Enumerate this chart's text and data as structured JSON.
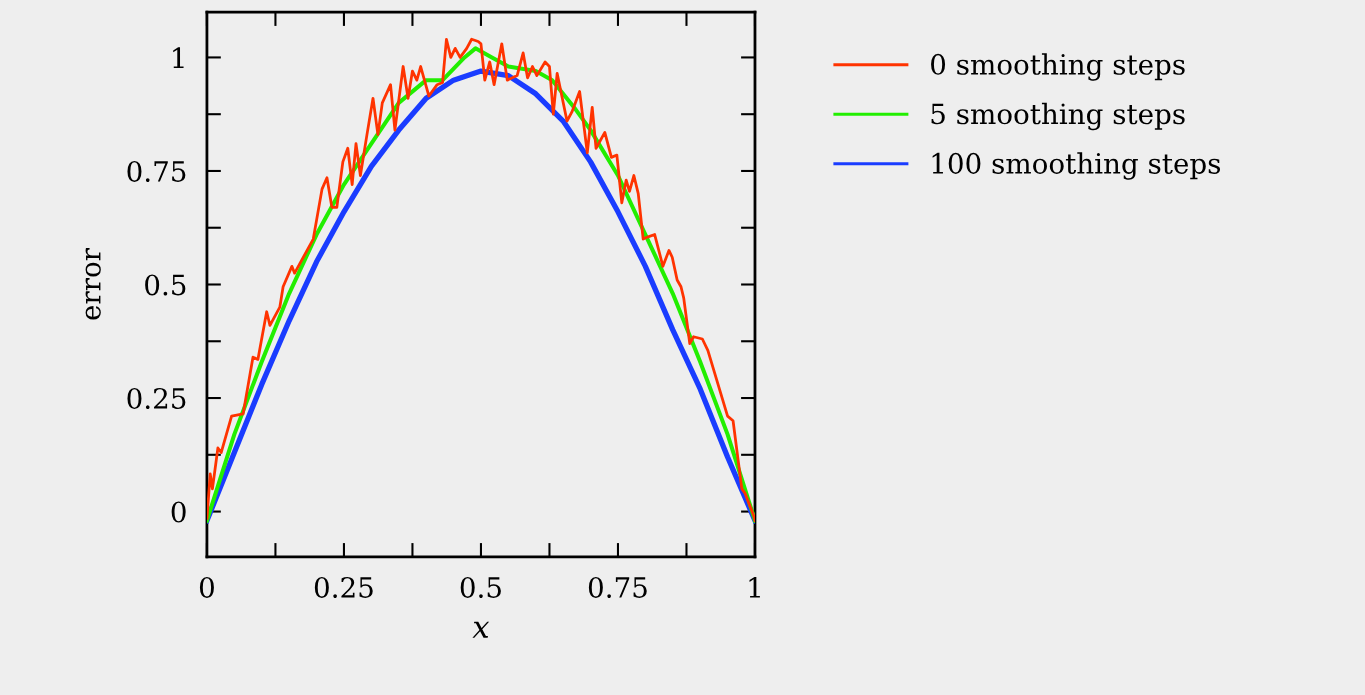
{
  "chart_data": {
    "type": "line",
    "xlabel": "x",
    "ylabel": "error",
    "xlim": [
      0,
      1
    ],
    "ylim": [
      -0.1,
      1.1
    ],
    "xticks": [
      0,
      {
        "value": 0.125,
        "label": null
      },
      0.25,
      {
        "value": 0.375,
        "label": null
      },
      0.5,
      {
        "value": 0.625,
        "label": null
      },
      0.75,
      {
        "value": 0.875,
        "label": null
      },
      1
    ],
    "yticks": [
      0,
      {
        "value": 0.125,
        "label": null
      },
      0.25,
      {
        "value": 0.375,
        "label": null
      },
      0.5,
      {
        "value": 0.625,
        "label": null
      },
      0.75,
      {
        "value": 0.875,
        "label": null
      },
      1
    ],
    "grid": false,
    "legend": "top right",
    "marker": "none",
    "line_style": "solid",
    "series": [
      {
        "name": "0 smoothing steps",
        "color": "#ff3300",
        "x": [
          0,
          0.006,
          0.01,
          0.02,
          0.026,
          0.045,
          0.066,
          0.084,
          0.093,
          0.109,
          0.115,
          0.133,
          0.139,
          0.155,
          0.16,
          0.194,
          0.21,
          0.219,
          0.228,
          0.237,
          0.248,
          0.257,
          0.265,
          0.272,
          0.28,
          0.292,
          0.303,
          0.312,
          0.32,
          0.335,
          0.343,
          0.358,
          0.367,
          0.375,
          0.383,
          0.39,
          0.405,
          0.42,
          0.43,
          0.437,
          0.445,
          0.453,
          0.462,
          0.474,
          0.483,
          0.495,
          0.5,
          0.507,
          0.516,
          0.524,
          0.538,
          0.548,
          0.566,
          0.577,
          0.585,
          0.594,
          0.602,
          0.617,
          0.625,
          0.632,
          0.639,
          0.657,
          0.666,
          0.68,
          0.694,
          0.703,
          0.71,
          0.726,
          0.738,
          0.748,
          0.757,
          0.765,
          0.771,
          0.779,
          0.787,
          0.796,
          0.805,
          0.817,
          0.832,
          0.843,
          0.849,
          0.858,
          0.865,
          0.87,
          0.881,
          0.888,
          0.904,
          0.914,
          0.95,
          0.96,
          0.976,
          0.982,
          0.998,
          1
        ],
        "values": [
          -0.015,
          0.083,
          0.05,
          0.14,
          0.13,
          0.21,
          0.215,
          0.34,
          0.335,
          0.44,
          0.41,
          0.45,
          0.495,
          0.54,
          0.525,
          0.6,
          0.71,
          0.735,
          0.67,
          0.67,
          0.77,
          0.8,
          0.72,
          0.81,
          0.74,
          0.83,
          0.91,
          0.83,
          0.9,
          0.94,
          0.84,
          0.98,
          0.91,
          0.97,
          0.95,
          0.98,
          0.915,
          0.94,
          0.945,
          1.04,
          1.0,
          1.02,
          1.0,
          1.02,
          1.04,
          1.035,
          1.03,
          0.95,
          0.99,
          0.94,
          1.03,
          0.95,
          0.96,
          1.01,
          0.955,
          0.98,
          0.96,
          0.99,
          0.98,
          0.875,
          0.965,
          0.86,
          0.88,
          0.925,
          0.79,
          0.89,
          0.8,
          0.835,
          0.78,
          0.785,
          0.68,
          0.73,
          0.705,
          0.74,
          0.7,
          0.6,
          0.605,
          0.61,
          0.54,
          0.575,
          0.56,
          0.51,
          0.495,
          0.47,
          0.37,
          0.385,
          0.38,
          0.355,
          0.21,
          0.2,
          0.05,
          0.04,
          -0.01,
          -0.02
        ]
      },
      {
        "name": "5 smoothing steps",
        "color": "#22ee00",
        "x": [
          0,
          0.05,
          0.1,
          0.15,
          0.2,
          0.25,
          0.3,
          0.35,
          0.4,
          0.43,
          0.47,
          0.49,
          0.52,
          0.55,
          0.6,
          0.63,
          0.67,
          0.7,
          0.75,
          0.8,
          0.85,
          0.9,
          0.95,
          1
        ],
        "values": [
          -0.02,
          0.17,
          0.33,
          0.48,
          0.61,
          0.72,
          0.81,
          0.9,
          0.95,
          0.95,
          1.0,
          1.02,
          1.0,
          0.98,
          0.97,
          0.95,
          0.89,
          0.84,
          0.74,
          0.61,
          0.48,
          0.33,
          0.17,
          -0.02
        ]
      },
      {
        "name": "100 smoothing steps",
        "color": "#1a3cff",
        "x": [
          0,
          0.05,
          0.1,
          0.15,
          0.2,
          0.25,
          0.3,
          0.35,
          0.4,
          0.45,
          0.5,
          0.55,
          0.6,
          0.65,
          0.7,
          0.75,
          0.8,
          0.85,
          0.9,
          0.95,
          1
        ],
        "values": [
          -0.02,
          0.13,
          0.28,
          0.42,
          0.55,
          0.66,
          0.76,
          0.84,
          0.91,
          0.95,
          0.97,
          0.96,
          0.92,
          0.86,
          0.77,
          0.66,
          0.54,
          0.4,
          0.27,
          0.12,
          -0.02
        ]
      }
    ]
  }
}
